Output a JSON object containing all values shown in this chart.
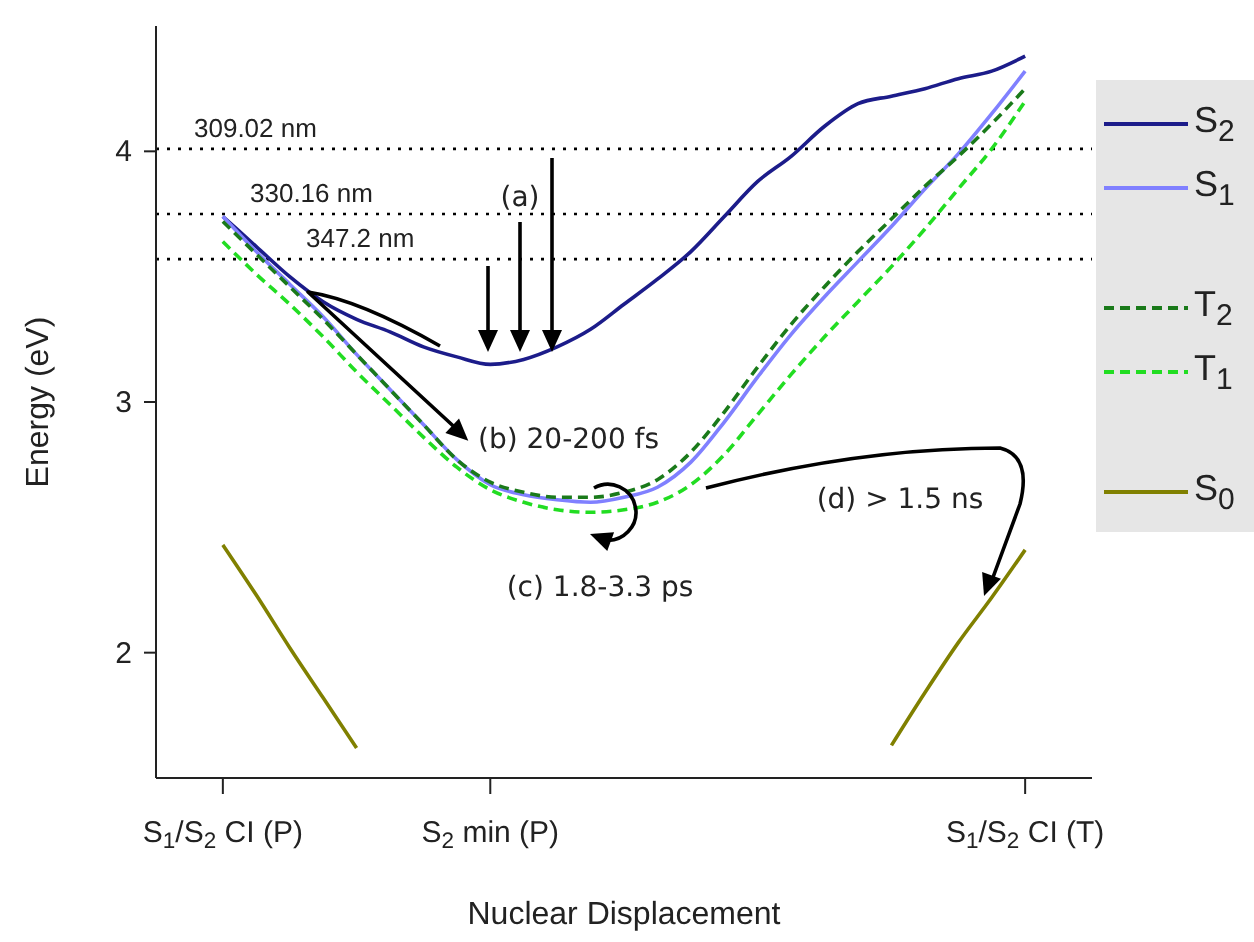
{
  "chart_data": {
    "type": "line",
    "xlabel": "Nuclear Displacement",
    "ylabel": "Energy (eV)",
    "categories": [
      null,
      null,
      "S$_{1}$/S$_{2}$ CI (P)",
      null,
      null,
      null,
      null,
      null,
      null,
      null,
      "S$_{2}$ min (P)",
      null,
      null,
      null,
      null,
      null,
      null,
      null,
      null,
      null,
      null,
      null,
      null,
      null,
      null,
      null,
      "S$_{1}$/S$_{2}$ CI (T)",
      null,
      null
    ],
    "ylim": [
      1.5,
      4.5
    ],
    "yticks": [
      2,
      3,
      4
    ],
    "legend": "right",
    "marker": "none",
    "series": [
      {
        "name": "S$_{2}$",
        "color": "#1c1c8a",
        "line_style": "solid",
        "values": [
          null,
          null,
          3.74,
          3.62,
          3.5,
          3.4,
          3.33,
          3.28,
          3.22,
          3.18,
          3.15,
          3.17,
          3.22,
          3.29,
          3.39,
          3.49,
          3.6,
          3.74,
          3.88,
          3.98,
          4.1,
          4.19,
          4.22,
          4.25,
          4.29,
          4.32,
          4.38,
          null,
          null
        ]
      },
      {
        "name": "S$_{1}$",
        "color": "#8080ff",
        "line_style": "solid",
        "values": [
          null,
          null,
          3.74,
          3.6,
          3.47,
          3.34,
          3.19,
          3.05,
          2.91,
          2.77,
          2.67,
          2.63,
          2.61,
          2.6,
          2.62,
          2.66,
          2.76,
          2.92,
          3.1,
          3.27,
          3.42,
          3.56,
          3.7,
          3.85,
          3.99,
          4.15,
          4.32,
          null,
          null
        ]
      },
      {
        "name": "T$_{2}$",
        "color": "#1a7a1a",
        "line_style": "dashed",
        "values": [
          null,
          null,
          3.72,
          3.59,
          3.46,
          3.33,
          3.19,
          3.05,
          2.91,
          2.77,
          2.68,
          2.64,
          2.62,
          2.62,
          2.64,
          2.69,
          2.8,
          2.96,
          3.14,
          3.31,
          3.46,
          3.6,
          3.73,
          3.86,
          3.98,
          4.11,
          4.25,
          null,
          null
        ]
      },
      {
        "name": "T$_{1}$",
        "color": "#22dd22",
        "line_style": "dashed",
        "values": [
          null,
          null,
          3.64,
          3.51,
          3.39,
          3.26,
          3.12,
          2.99,
          2.86,
          2.74,
          2.65,
          2.6,
          2.57,
          2.56,
          2.57,
          2.6,
          2.67,
          2.79,
          2.95,
          3.11,
          3.26,
          3.4,
          3.54,
          3.69,
          3.85,
          4.01,
          4.2,
          null,
          null
        ]
      },
      {
        "name": "S$_{0}$",
        "color": "#808000",
        "line_style": "solid",
        "values": [
          null,
          null,
          2.43,
          2.23,
          2.02,
          1.82,
          1.62,
          null,
          null,
          null,
          null,
          null,
          null,
          null,
          null,
          null,
          null,
          null,
          null,
          null,
          null,
          null,
          1.63,
          1.84,
          2.04,
          2.22,
          2.41,
          null,
          null
        ]
      }
    ],
    "ref_lines": [
      {
        "axis": "y",
        "value": 4.01,
        "label": "309.02 nm",
        "color": "#000000",
        "line_style": "dotted"
      },
      {
        "axis": "y",
        "value": 3.75,
        "label": "330.16 nm",
        "color": "#000000",
        "line_style": "dotted"
      },
      {
        "axis": "y",
        "value": 3.57,
        "label": "347.2 nm",
        "color": "#000000",
        "line_style": "dotted"
      }
    ],
    "annotations": [
      "(a)",
      {
        "text": "(b) 20-200 fs",
        "x": "S$_{2}$ min (P)",
        "y": 2.67
      },
      "(c) 1.8-3.3 ps",
      "(d) > 1.5 ns"
    ]
  }
}
